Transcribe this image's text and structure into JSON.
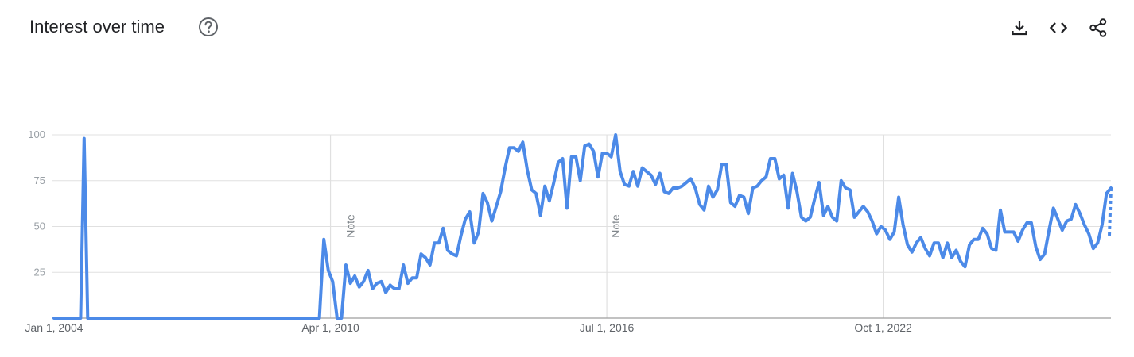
{
  "header": {
    "title": "Interest over time",
    "help_icon": "help-circle-icon",
    "actions": [
      {
        "name": "download",
        "icon": "download-icon"
      },
      {
        "name": "embed",
        "icon": "code-icon"
      },
      {
        "name": "share",
        "icon": "share-icon"
      }
    ]
  },
  "colors": {
    "line": "#4c8ae8",
    "grid": "#e0e0e0",
    "axis": "#9e9e9e",
    "text": "#202124"
  },
  "chart_data": {
    "type": "line",
    "title": "",
    "xlabel": "",
    "ylabel": "",
    "ylim": [
      0,
      100
    ],
    "yticks": [
      25,
      50,
      75,
      100
    ],
    "grid": true,
    "x_tick_labels": [
      {
        "label": "Jan 1, 2004",
        "x": 2004.0
      },
      {
        "label": "Apr 1, 2010",
        "x": 2010.25
      },
      {
        "label": "Jul 1, 2016",
        "x": 2016.5
      },
      {
        "label": "Oct 1, 2022",
        "x": 2022.75
      }
    ],
    "notes": [
      {
        "label": "Note",
        "x": 2010.5
      },
      {
        "label": "Note",
        "x": 2016.5
      }
    ],
    "partial_from": 2024.25,
    "series": [
      {
        "name": "",
        "values": [
          [
            2004.0,
            0
          ],
          [
            2004.6,
            0
          ],
          [
            2004.68,
            98
          ],
          [
            2004.76,
            0
          ],
          [
            2010.0,
            0
          ],
          [
            2010.1,
            43
          ],
          [
            2010.2,
            26
          ],
          [
            2010.3,
            20
          ],
          [
            2010.4,
            0
          ],
          [
            2010.5,
            0
          ],
          [
            2010.6,
            29
          ],
          [
            2010.7,
            19
          ],
          [
            2010.8,
            23
          ],
          [
            2010.9,
            17
          ],
          [
            2011.0,
            20
          ],
          [
            2011.1,
            26
          ],
          [
            2011.2,
            16
          ],
          [
            2011.3,
            19
          ],
          [
            2011.4,
            20
          ],
          [
            2011.5,
            14
          ],
          [
            2011.6,
            18
          ],
          [
            2011.7,
            16
          ],
          [
            2011.8,
            16
          ],
          [
            2011.9,
            29
          ],
          [
            2012.0,
            19
          ],
          [
            2012.1,
            22
          ],
          [
            2012.2,
            22
          ],
          [
            2012.3,
            35
          ],
          [
            2012.4,
            33
          ],
          [
            2012.5,
            29
          ],
          [
            2012.6,
            41
          ],
          [
            2012.7,
            41
          ],
          [
            2012.8,
            49
          ],
          [
            2012.9,
            37
          ],
          [
            2013.0,
            35
          ],
          [
            2013.1,
            34
          ],
          [
            2013.2,
            45
          ],
          [
            2013.3,
            54
          ],
          [
            2013.4,
            58
          ],
          [
            2013.5,
            41
          ],
          [
            2013.6,
            47
          ],
          [
            2013.7,
            68
          ],
          [
            2013.8,
            63
          ],
          [
            2013.9,
            53
          ],
          [
            2014.0,
            61
          ],
          [
            2014.1,
            69
          ],
          [
            2014.2,
            82
          ],
          [
            2014.3,
            93
          ],
          [
            2014.4,
            93
          ],
          [
            2014.5,
            91
          ],
          [
            2014.6,
            96
          ],
          [
            2014.7,
            81
          ],
          [
            2014.8,
            70
          ],
          [
            2014.9,
            68
          ],
          [
            2015.0,
            56
          ],
          [
            2015.1,
            72
          ],
          [
            2015.2,
            64
          ],
          [
            2015.3,
            74
          ],
          [
            2015.4,
            85
          ],
          [
            2015.5,
            87
          ],
          [
            2015.6,
            60
          ],
          [
            2015.7,
            88
          ],
          [
            2015.8,
            88
          ],
          [
            2015.9,
            75
          ],
          [
            2016.0,
            94
          ],
          [
            2016.1,
            95
          ],
          [
            2016.2,
            91
          ],
          [
            2016.3,
            77
          ],
          [
            2016.4,
            90
          ],
          [
            2016.5,
            90
          ],
          [
            2016.6,
            88
          ],
          [
            2016.7,
            100
          ],
          [
            2016.8,
            80
          ],
          [
            2016.9,
            73
          ],
          [
            2017.0,
            72
          ],
          [
            2017.1,
            80
          ],
          [
            2017.2,
            72
          ],
          [
            2017.3,
            82
          ],
          [
            2017.4,
            80
          ],
          [
            2017.5,
            78
          ],
          [
            2017.6,
            73
          ],
          [
            2017.7,
            79
          ],
          [
            2017.8,
            69
          ],
          [
            2017.9,
            68
          ],
          [
            2018.0,
            71
          ],
          [
            2018.1,
            71
          ],
          [
            2018.2,
            72
          ],
          [
            2018.3,
            74
          ],
          [
            2018.4,
            76
          ],
          [
            2018.5,
            71
          ],
          [
            2018.6,
            62
          ],
          [
            2018.7,
            59
          ],
          [
            2018.8,
            72
          ],
          [
            2018.9,
            66
          ],
          [
            2019.0,
            70
          ],
          [
            2019.1,
            84
          ],
          [
            2019.2,
            84
          ],
          [
            2019.3,
            63
          ],
          [
            2019.4,
            61
          ],
          [
            2019.5,
            67
          ],
          [
            2019.6,
            66
          ],
          [
            2019.7,
            57
          ],
          [
            2019.8,
            71
          ],
          [
            2019.9,
            72
          ],
          [
            2020.0,
            75
          ],
          [
            2020.1,
            77
          ],
          [
            2020.2,
            87
          ],
          [
            2020.3,
            87
          ],
          [
            2020.4,
            76
          ],
          [
            2020.5,
            78
          ],
          [
            2020.6,
            60
          ],
          [
            2020.7,
            79
          ],
          [
            2020.8,
            69
          ],
          [
            2020.9,
            55
          ],
          [
            2021.0,
            53
          ],
          [
            2021.1,
            55
          ],
          [
            2021.2,
            65
          ],
          [
            2021.3,
            74
          ],
          [
            2021.4,
            56
          ],
          [
            2021.5,
            61
          ],
          [
            2021.6,
            55
          ],
          [
            2021.7,
            53
          ],
          [
            2021.8,
            75
          ],
          [
            2021.9,
            71
          ],
          [
            2022.0,
            70
          ],
          [
            2022.1,
            55
          ],
          [
            2022.2,
            58
          ],
          [
            2022.3,
            61
          ],
          [
            2022.4,
            58
          ],
          [
            2022.5,
            53
          ],
          [
            2022.6,
            46
          ],
          [
            2022.7,
            50
          ],
          [
            2022.8,
            48
          ],
          [
            2022.9,
            43
          ],
          [
            2023.0,
            47
          ],
          [
            2023.1,
            66
          ],
          [
            2023.2,
            51
          ],
          [
            2023.3,
            40
          ],
          [
            2023.4,
            36
          ],
          [
            2023.5,
            41
          ],
          [
            2023.6,
            44
          ],
          [
            2023.7,
            38
          ],
          [
            2023.8,
            34
          ],
          [
            2023.9,
            41
          ],
          [
            2024.0,
            41
          ],
          [
            2024.1,
            33
          ],
          [
            2024.2,
            41
          ],
          [
            2024.3,
            33
          ],
          [
            2024.4,
            37
          ],
          [
            2024.5,
            31
          ],
          [
            2024.6,
            28
          ],
          [
            2024.7,
            40
          ],
          [
            2024.8,
            43
          ],
          [
            2024.9,
            43
          ],
          [
            2025.0,
            49
          ],
          [
            2025.1,
            46
          ],
          [
            2025.2,
            38
          ],
          [
            2025.3,
            37
          ],
          [
            2025.4,
            59
          ],
          [
            2025.5,
            47
          ],
          [
            2025.6,
            47
          ],
          [
            2025.7,
            47
          ],
          [
            2025.8,
            42
          ],
          [
            2025.9,
            48
          ],
          [
            2026.0,
            52
          ],
          [
            2026.1,
            52
          ],
          [
            2026.2,
            39
          ],
          [
            2026.3,
            32
          ],
          [
            2026.4,
            35
          ],
          [
            2026.5,
            48
          ],
          [
            2026.6,
            60
          ],
          [
            2026.7,
            54
          ],
          [
            2026.8,
            48
          ],
          [
            2026.9,
            53
          ],
          [
            2027.0,
            54
          ],
          [
            2027.1,
            62
          ],
          [
            2027.2,
            57
          ],
          [
            2027.3,
            51
          ],
          [
            2027.4,
            46
          ],
          [
            2027.5,
            38
          ],
          [
            2027.6,
            41
          ],
          [
            2027.7,
            51
          ],
          [
            2027.8,
            68
          ],
          [
            2027.9,
            71
          ]
        ]
      }
    ]
  }
}
